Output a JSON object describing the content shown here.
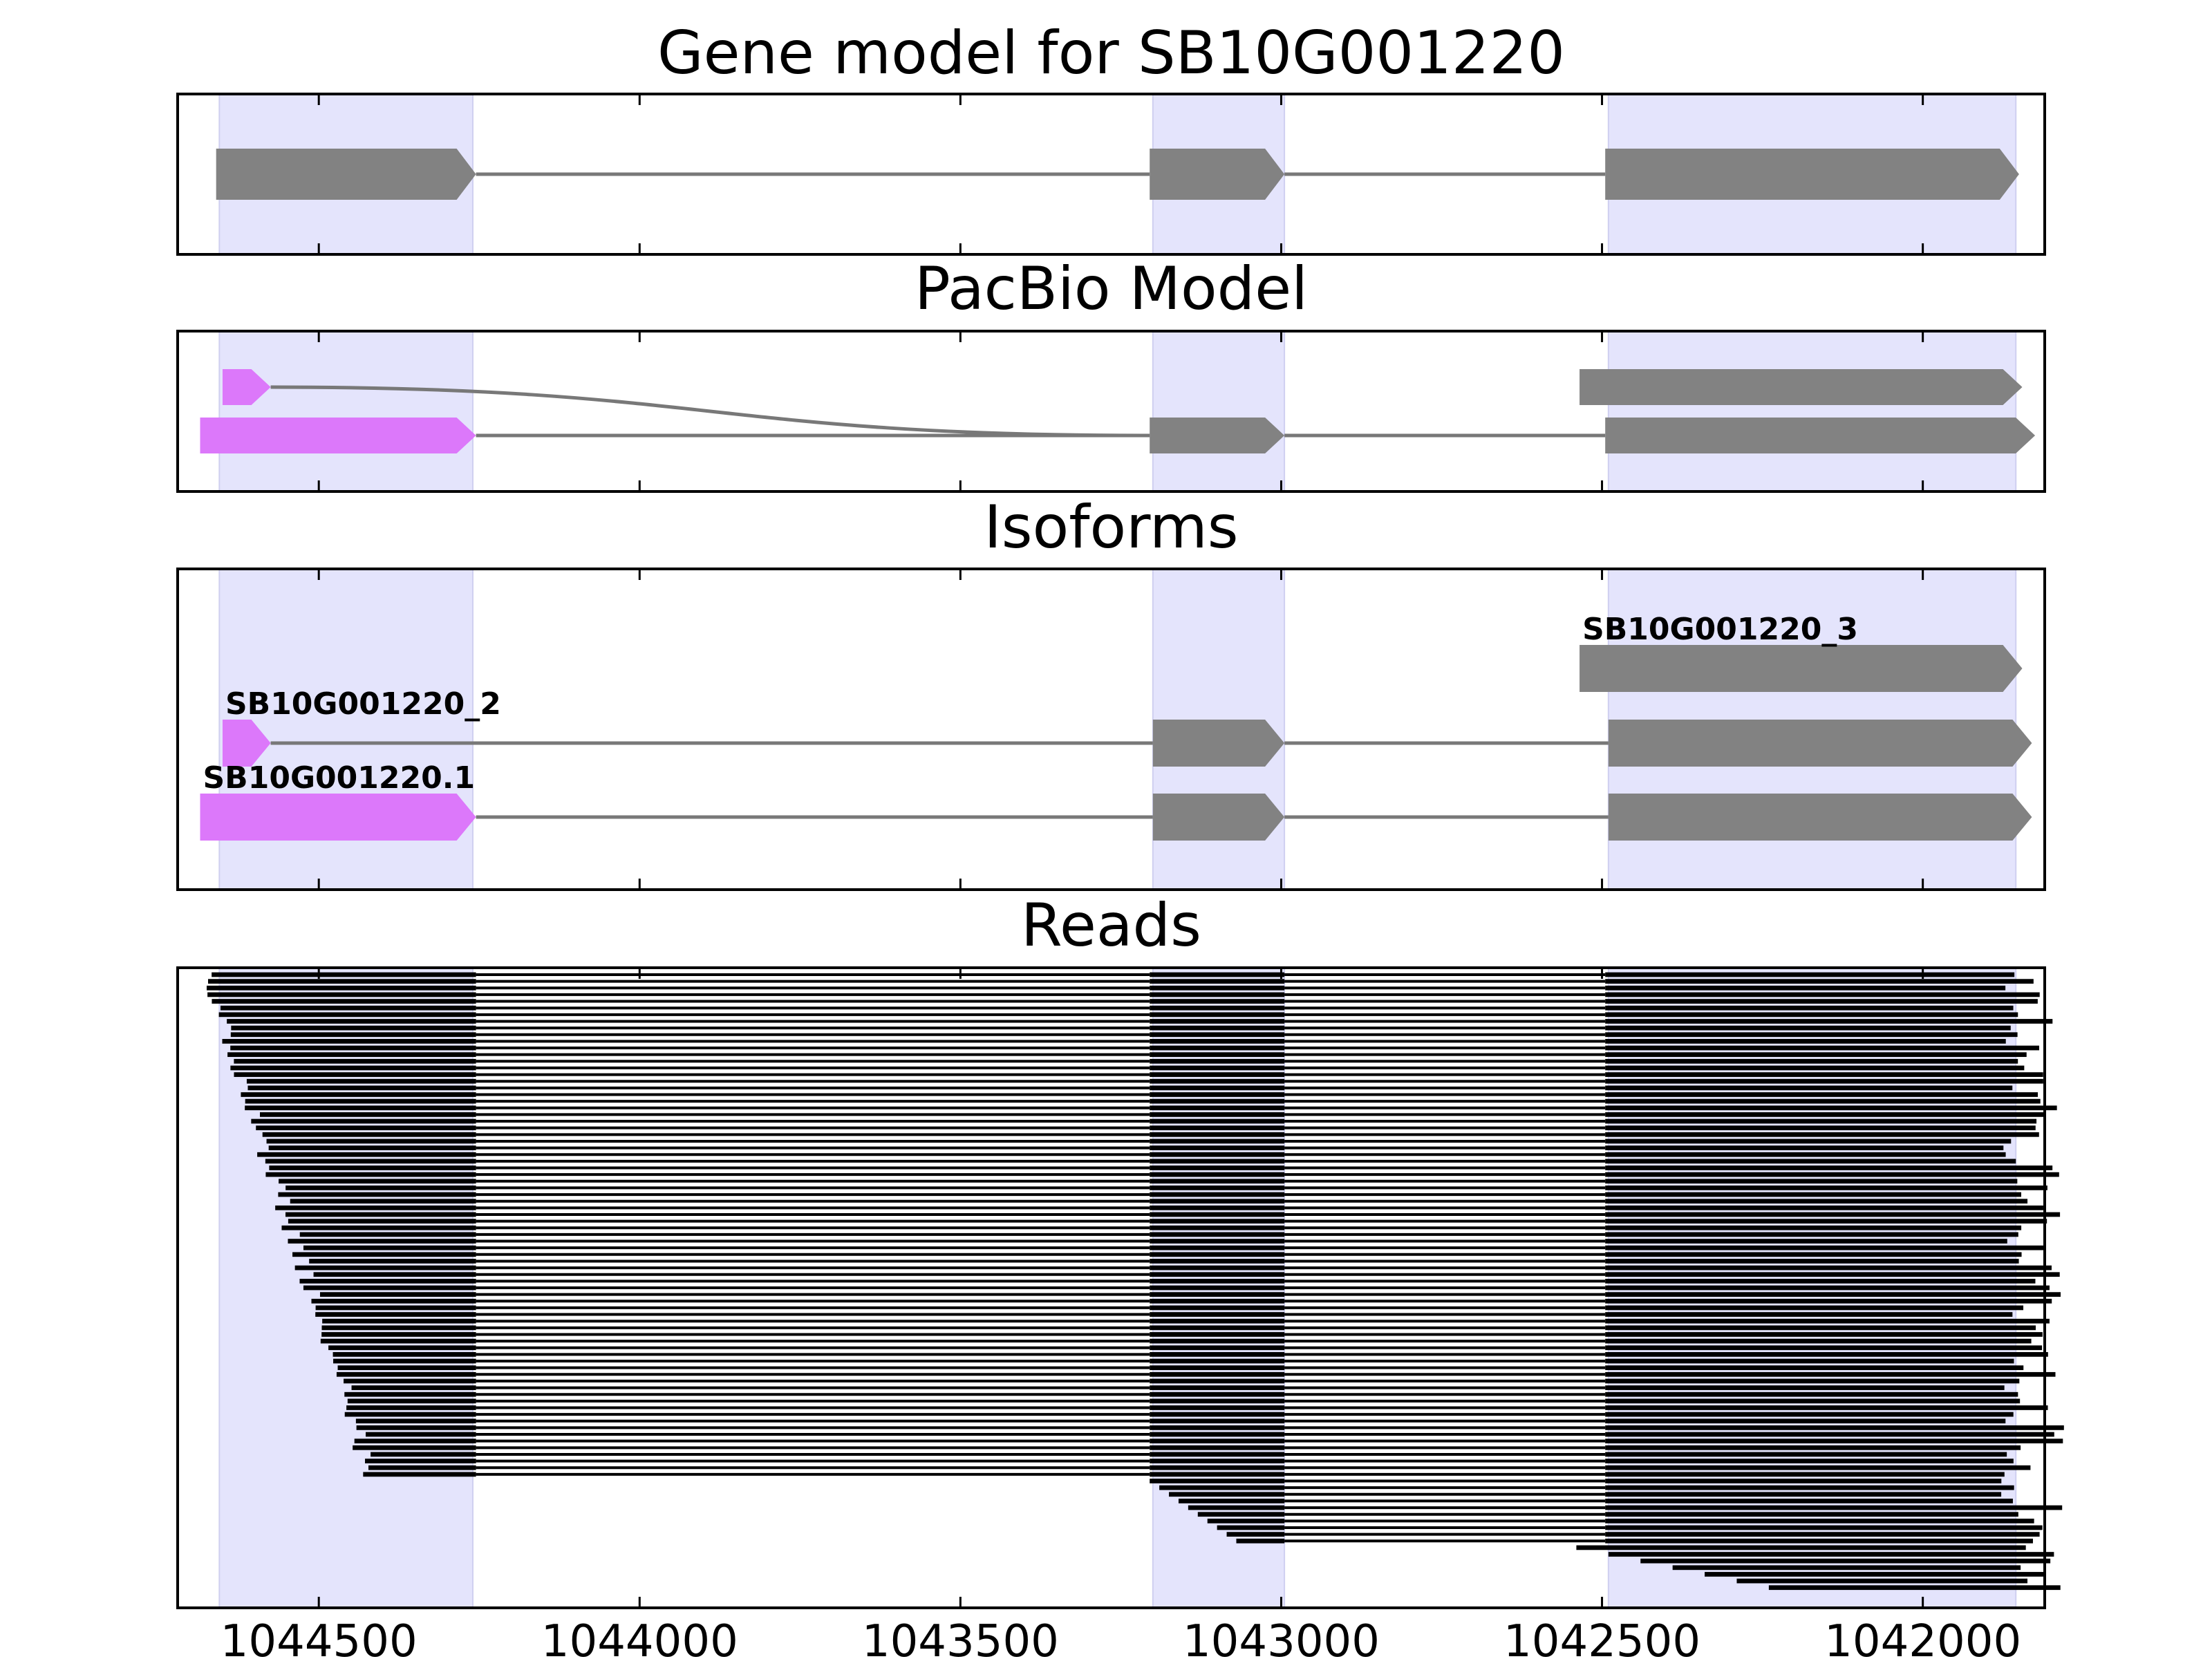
{
  "chart_data": {
    "type": "gene-model",
    "x_axis": {
      "direction": "reversed",
      "xlim": [
        1044720,
        1041810
      ],
      "ticks": [
        1044500,
        1044000,
        1043500,
        1043000,
        1042500,
        1042000
      ],
      "tick_labels": [
        "1044500",
        "1044000",
        "1043500",
        "1043000",
        "1042500",
        "1042000"
      ]
    },
    "colors": {
      "exon_highlight": "#e4e4fc",
      "exon_default": "#828282",
      "exon_pacbio_5prime": "#dc78fa",
      "intron_line": "#787878",
      "read": "#000000"
    },
    "exon_regions": [
      [
        1044655,
        1044260
      ],
      [
        1043200,
        1042995
      ],
      [
        1042490,
        1041855
      ]
    ],
    "panels": [
      {
        "title": "Gene model for SB10G001220",
        "tracks": [
          {
            "lane": 0,
            "exons": [
              [
                1044660,
                1044255,
                "gray"
              ],
              [
                1043205,
                1042995,
                "gray"
              ],
              [
                1042495,
                1041850,
                "gray"
              ]
            ]
          }
        ]
      },
      {
        "title": "PacBio Model",
        "tracks": [
          {
            "lane": 1,
            "connector": "curve",
            "exons": [
              [
                1044650,
                1044575,
                "magenta"
              ],
              [
                1042535,
                1041845,
                "gray"
              ]
            ]
          },
          {
            "lane": 0,
            "exons": [
              [
                1044685,
                1044255,
                "magenta"
              ],
              [
                1043205,
                1042995,
                "gray"
              ],
              [
                1042495,
                1041825,
                "gray"
              ]
            ]
          }
        ]
      },
      {
        "title": "Isoforms",
        "tracks": [
          {
            "lane": 2,
            "name": "SB10G001220_3",
            "exons": [
              [
                1042535,
                1041845,
                "gray"
              ]
            ]
          },
          {
            "lane": 1,
            "name": "SB10G001220_2",
            "exons": [
              [
                1044650,
                1044575,
                "magenta"
              ],
              [
                1043200,
                1042995,
                "gray"
              ],
              [
                1042490,
                1041830,
                "gray"
              ]
            ]
          },
          {
            "lane": 0,
            "name": "SB10G001220.1",
            "exons": [
              [
                1044685,
                1044255,
                "magenta"
              ],
              [
                1043200,
                1042995,
                "gray"
              ],
              [
                1042490,
                1041830,
                "gray"
              ]
            ]
          }
        ]
      },
      {
        "title": "Reads",
        "reads_shape": "stacked-bars",
        "read_count": 88
      }
    ]
  }
}
